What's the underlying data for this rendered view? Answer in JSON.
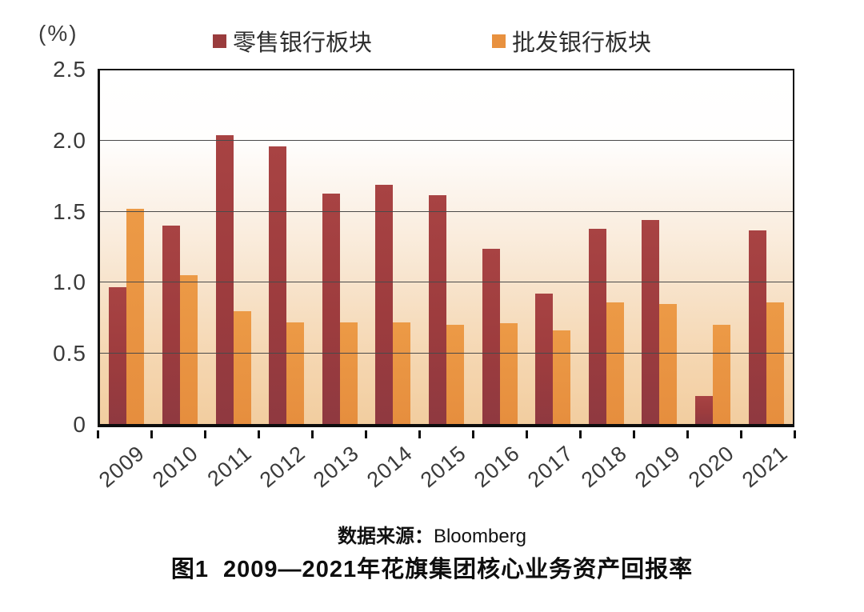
{
  "unit_label": "(%)",
  "legend": {
    "items": [
      {
        "label": "零售银行板块",
        "color": "#9a3c3d"
      },
      {
        "label": "批发银行板块",
        "color": "#e8913f"
      }
    ]
  },
  "chart_data": {
    "type": "bar",
    "title": "图1 2009—2021年花旗集团核心业务资产回报率",
    "unit": "%",
    "categories": [
      "2009",
      "2010",
      "2011",
      "2012",
      "2013",
      "2014",
      "2015",
      "2016",
      "2017",
      "2018",
      "2019",
      "2020",
      "2021"
    ],
    "series": [
      {
        "name": "零售银行板块",
        "color": "#9a3c3d",
        "values": [
          0.97,
          1.4,
          2.04,
          1.96,
          1.63,
          1.69,
          1.62,
          1.24,
          0.92,
          1.38,
          1.44,
          0.2,
          1.37
        ]
      },
      {
        "name": "批发银行板块",
        "color": "#e8913f",
        "values": [
          1.52,
          1.05,
          0.8,
          0.72,
          0.72,
          0.72,
          0.7,
          0.71,
          0.66,
          0.86,
          0.85,
          0.7,
          0.86
        ]
      }
    ],
    "ylim": [
      0,
      2.5
    ],
    "ytick_labels": [
      "0",
      "0.5",
      "1.0",
      "1.5",
      "2.0",
      "2.5"
    ],
    "yticks": [
      0,
      0.5,
      1.0,
      1.5,
      2.0,
      2.5
    ],
    "grid": true,
    "legend_position": "top",
    "xlabel": "",
    "ylabel": "(%)"
  },
  "caption": {
    "source_label": "数据来源：",
    "source_value": "Bloomberg",
    "figure_label": "图1",
    "title": "2009—2021年花旗集团核心业务资产回报率"
  }
}
